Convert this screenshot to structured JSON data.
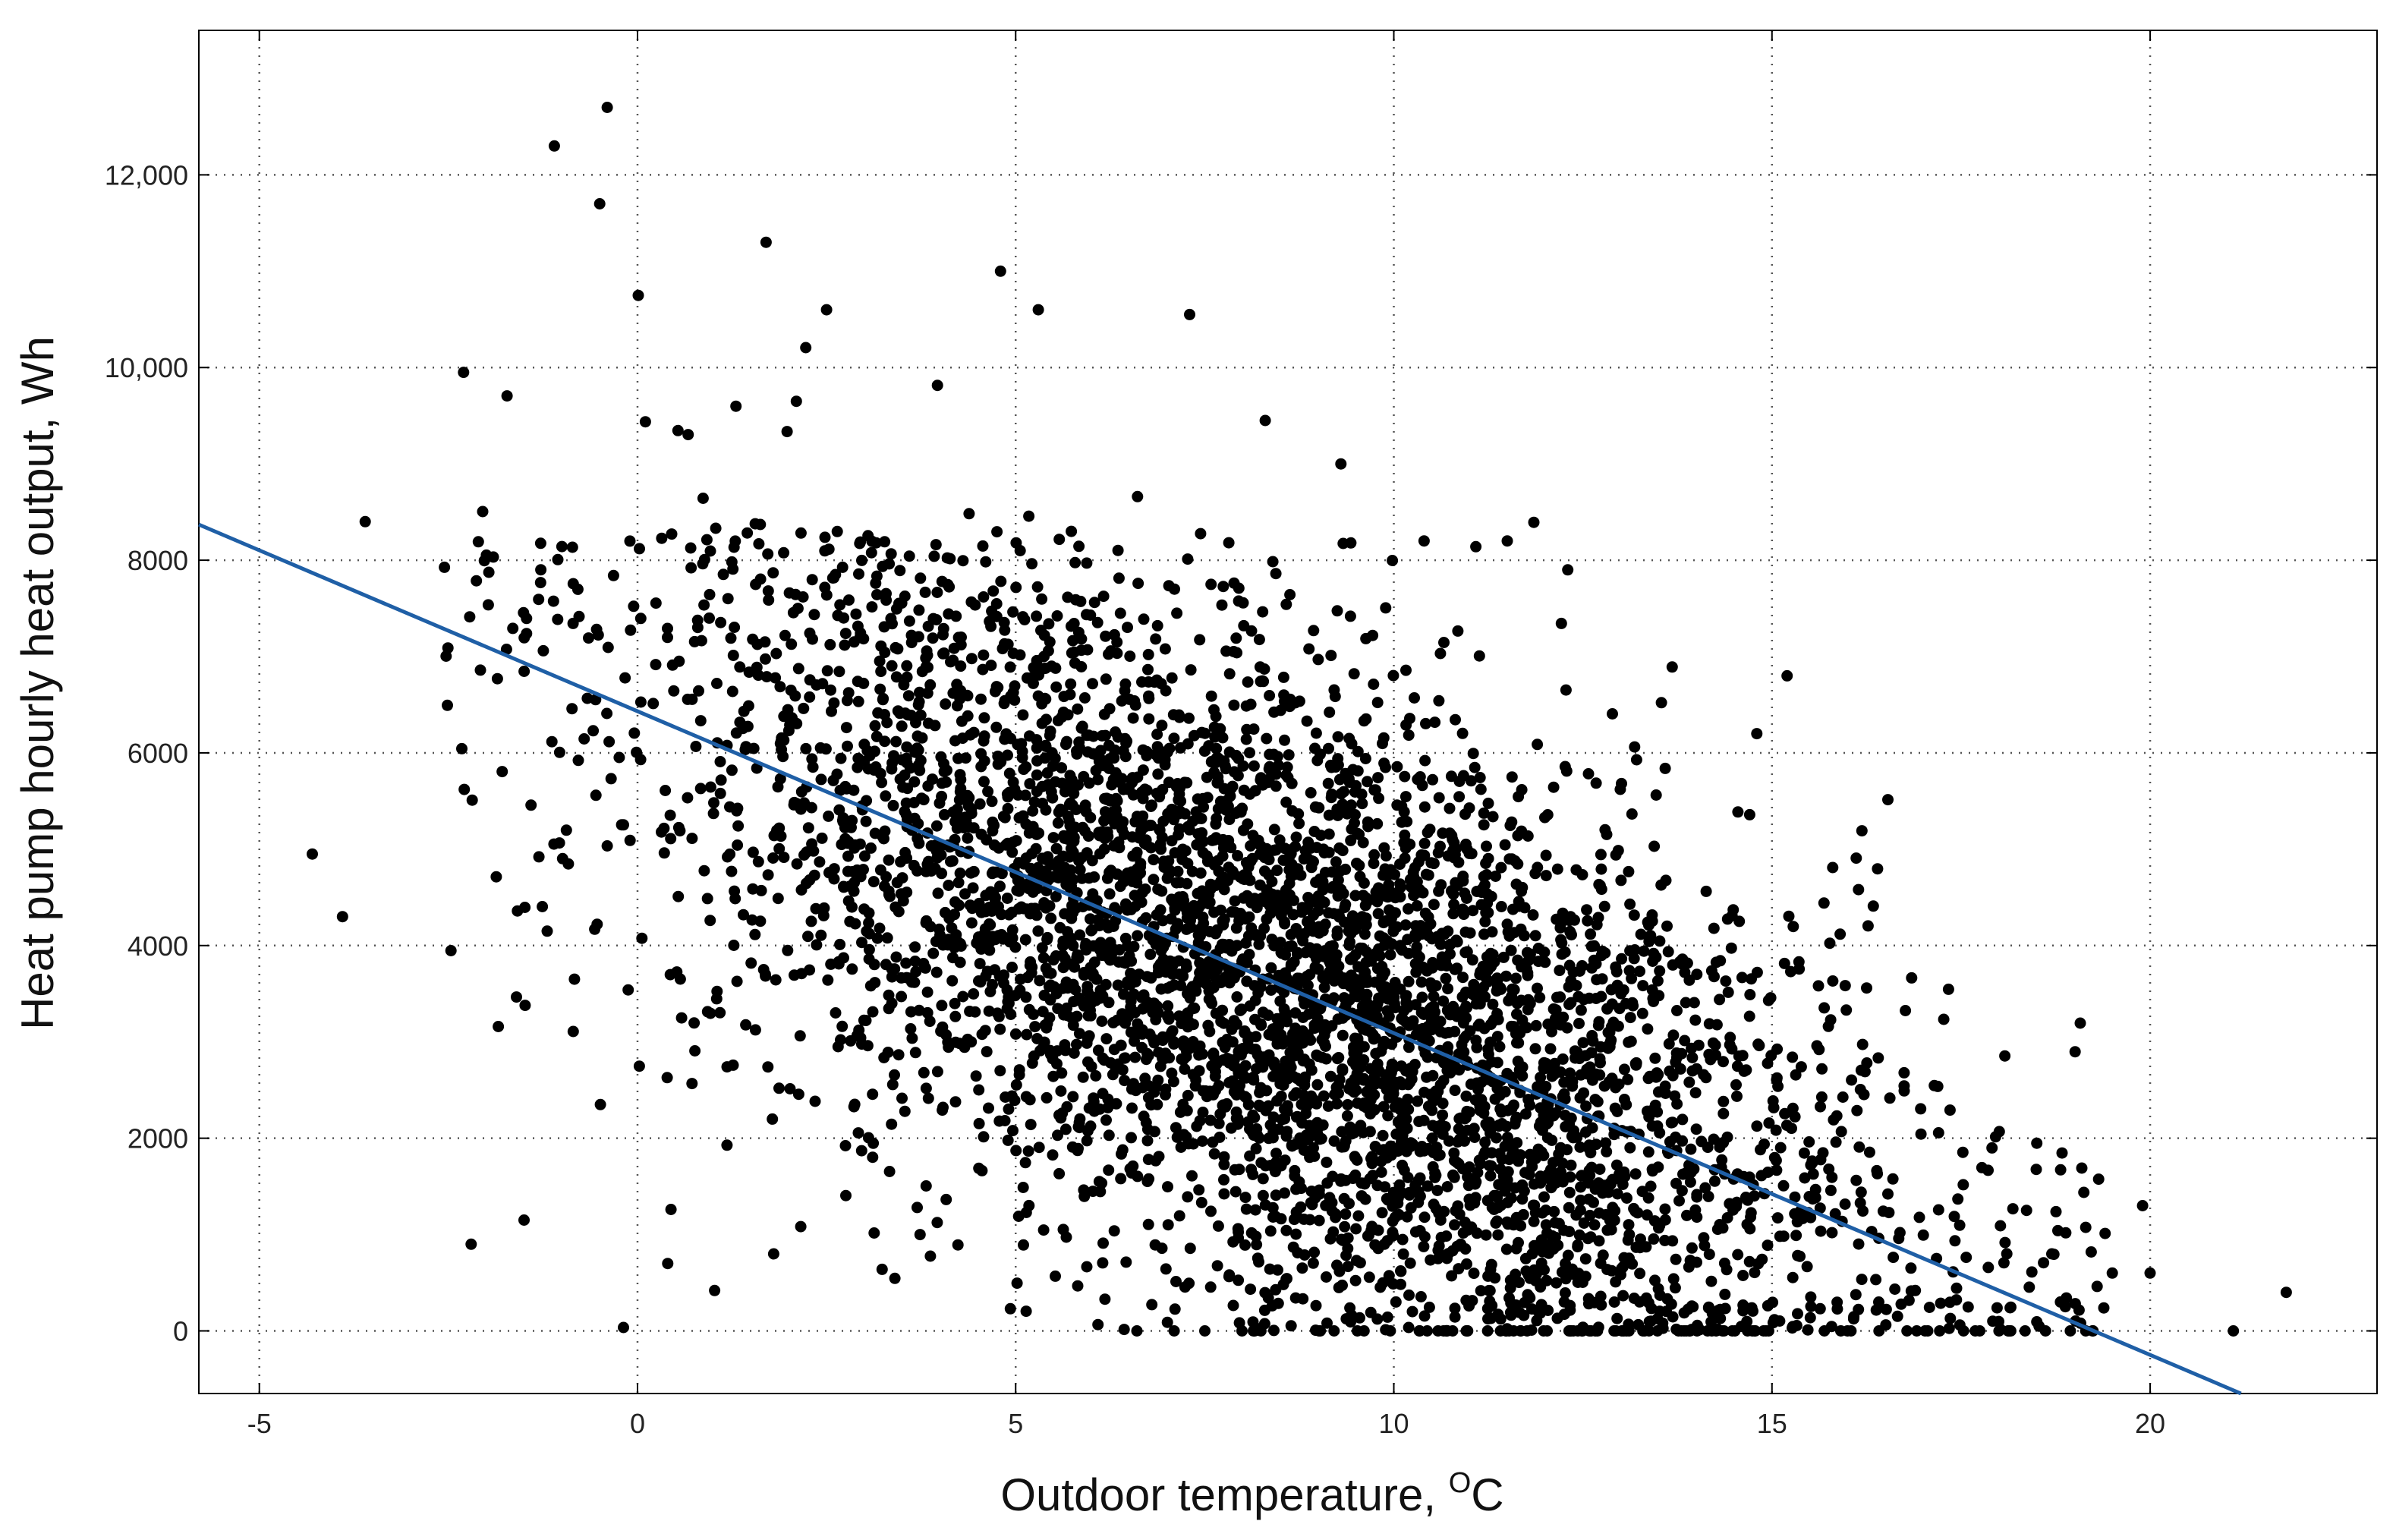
{
  "chart_data": {
    "type": "scatter",
    "title": "",
    "xlabel": "Outdoor temperature, ",
    "xlabel_sup": "O",
    "xlabel_unit": "C",
    "ylabel": "Heat pump hourly heat output, Wh",
    "xlim": [
      -5.8,
      23
    ],
    "ylim": [
      -650,
      13500
    ],
    "x_ticks": [
      -5,
      0,
      5,
      10,
      15,
      20
    ],
    "x_tick_labels": [
      "-5",
      "0",
      "5",
      "10",
      "15",
      "20"
    ],
    "y_ticks": [
      0,
      2000,
      4000,
      6000,
      8000,
      10000,
      12000
    ],
    "y_tick_labels": [
      "0",
      "2000",
      "4000",
      "6000",
      "8000",
      "10,000",
      "12,000"
    ],
    "grid": true,
    "grid_style": "dotted",
    "legend": "none",
    "point_color": "#000000",
    "line_color": "#1f5fa6",
    "approx_point_count": 5000,
    "trend_line": {
      "x": [
        -5.8,
        21.2
      ],
      "y": [
        8370,
        -650
      ]
    },
    "series": [
      {
        "name": "",
        "points_sample": [
          [
            -0.4,
            12700
          ],
          [
            -1.1,
            12300
          ],
          [
            -0.5,
            11700
          ],
          [
            1.7,
            11300
          ],
          [
            4.8,
            11000
          ],
          [
            7.3,
            10550
          ],
          [
            2.5,
            10600
          ],
          [
            5.3,
            10600
          ],
          [
            -2.3,
            9950
          ],
          [
            2.1,
            9650
          ],
          [
            8.3,
            9450
          ],
          [
            9.3,
            9000
          ],
          [
            -3.6,
            8400
          ],
          [
            -4.3,
            4950
          ],
          [
            -3.9,
            4300
          ],
          [
            -2.2,
            900
          ],
          [
            -1.5,
            1150
          ],
          [
            0.4,
            700
          ],
          [
            1.8,
            800
          ],
          [
            21.8,
            400
          ],
          [
            20.0,
            600
          ],
          [
            19.9,
            1300
          ],
          [
            21.1,
            0
          ],
          [
            15.2,
            6800
          ],
          [
            14.8,
            6200
          ],
          [
            12.3,
            7900
          ],
          [
            11.5,
            8200
          ],
          [
            10.4,
            8200
          ],
          [
            19.5,
            600
          ],
          [
            18.7,
            800
          ]
        ]
      }
    ]
  }
}
